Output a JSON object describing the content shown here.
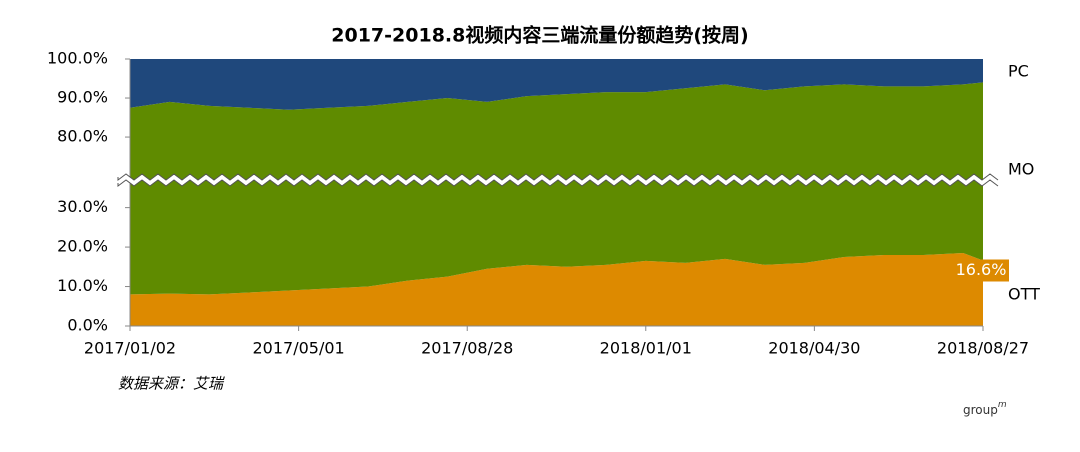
{
  "chart_data": {
    "type": "stacked-area",
    "title": "2017-2018.8视频内容三端流量份额趋势(按周)",
    "x": [
      "2017/01/02",
      "2017/01/30",
      "2017/02/27",
      "2017/03/27",
      "2017/04/24",
      "2017/05/22",
      "2017/06/19",
      "2017/07/17",
      "2017/08/14",
      "2017/09/11",
      "2017/10/09",
      "2017/11/06",
      "2017/12/04",
      "2018/01/01",
      "2018/01/29",
      "2018/02/26",
      "2018/03/26",
      "2018/04/23",
      "2018/05/21",
      "2018/06/18",
      "2018/07/16",
      "2018/08/13",
      "2018/08/27"
    ],
    "xlim": [
      "2017/01/02",
      "2018/08/27"
    ],
    "xticks": [
      "2017/01/02",
      "2017/05/01",
      "2017/08/28",
      "2018/01/01",
      "2018/04/30",
      "2018/08/27"
    ],
    "series": [
      {
        "name": "OTT",
        "color": "#dd8a00",
        "values": [
          8.0,
          8.2,
          8.0,
          8.5,
          9.0,
          9.5,
          10.0,
          11.5,
          12.5,
          14.5,
          15.5,
          15.0,
          15.5,
          16.5,
          16.0,
          17.0,
          15.5,
          16.0,
          17.5,
          18.0,
          18.0,
          18.5,
          16.6
        ],
        "value_labels": [
          null,
          null,
          null,
          null,
          null,
          null,
          null,
          null,
          null,
          null,
          null,
          null,
          null,
          null,
          null,
          null,
          null,
          null,
          null,
          null,
          null,
          null,
          "16.6%"
        ]
      },
      {
        "name": "MO",
        "color": "#5f8b00",
        "values": [
          79.5,
          80.8,
          80.0,
          79.0,
          78.0,
          78.0,
          78.0,
          77.5,
          77.5,
          74.5,
          75.0,
          76.0,
          76.0,
          75.0,
          76.5,
          76.5,
          76.5,
          77.0,
          76.0,
          75.0,
          75.0,
          75.0,
          77.4
        ]
      },
      {
        "name": "PC",
        "color": "#1f487c",
        "values": [
          12.5,
          11.0,
          12.0,
          12.5,
          13.0,
          12.5,
          12.0,
          11.0,
          10.0,
          11.0,
          9.5,
          9.0,
          8.5,
          8.5,
          7.5,
          6.5,
          8.0,
          7.0,
          6.5,
          7.0,
          7.0,
          6.5,
          6.0
        ]
      }
    ],
    "ylim": [
      0,
      100
    ],
    "ybreak": [
      37,
      69
    ],
    "yticks": [
      {
        "value": 0,
        "label": "0.0%"
      },
      {
        "value": 10,
        "label": "10.0%"
      },
      {
        "value": 20,
        "label": "20.0%"
      },
      {
        "value": 30,
        "label": "30.0%"
      },
      {
        "value": 80,
        "label": "80.0%"
      },
      {
        "value": 90,
        "label": "90.0%"
      },
      {
        "value": 100,
        "label": "100.0%"
      }
    ],
    "source": "数据来源：艾瑞",
    "logo": {
      "text": "group",
      "sup": "m"
    }
  }
}
